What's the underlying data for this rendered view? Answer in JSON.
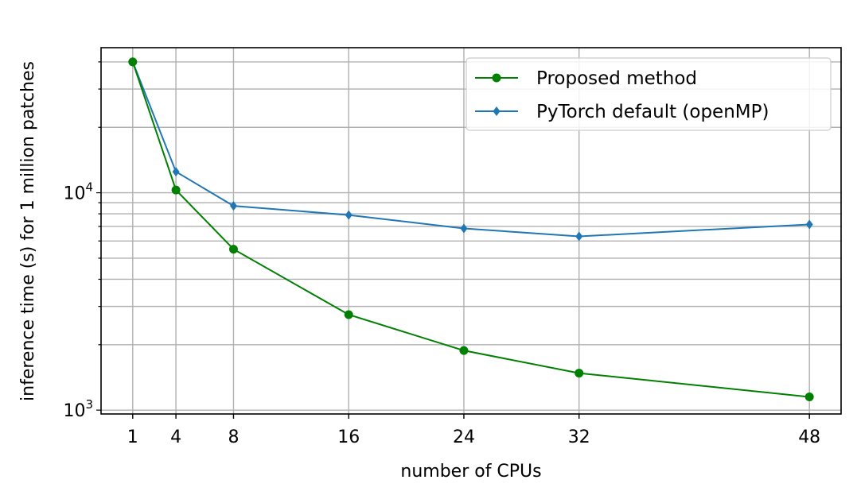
{
  "chart_data": {
    "type": "line",
    "title": "",
    "xlabel": "number of CPUs",
    "ylabel": "inference time (s) for 1 million patches",
    "x": [
      1,
      4,
      8,
      16,
      24,
      32,
      48
    ],
    "x_ticks": [
      "1",
      "4",
      "8",
      "16",
      "24",
      "32",
      "48"
    ],
    "y_scale": "log",
    "y_ticks": [
      {
        "base": "10",
        "exp": "3",
        "value": 1000
      },
      {
        "base": "10",
        "exp": "4",
        "value": 10000
      }
    ],
    "xlim": [
      -1.2,
      50.2
    ],
    "ylim": [
      960,
      46500
    ],
    "grid": true,
    "legend_position": "top-right",
    "series": [
      {
        "name": "Proposed method",
        "color": "#008000",
        "marker": "circle",
        "values": [
          40000,
          10300,
          5500,
          2750,
          1880,
          1480,
          1150
        ]
      },
      {
        "name": "PyTorch default (openMP)",
        "color": "#1f77b4",
        "marker": "diamond",
        "values": [
          40000,
          12500,
          8700,
          7900,
          6850,
          6300,
          7150
        ]
      }
    ]
  }
}
